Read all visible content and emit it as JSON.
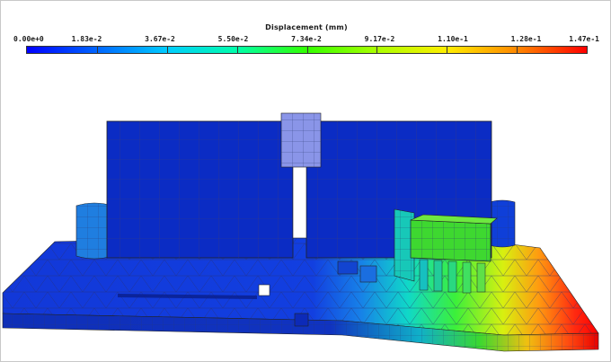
{
  "legend": {
    "title": "Displacement (mm)",
    "tick_labels": [
      "0.00e+0",
      "1.83e-2",
      "3.67e-2",
      "5.50e-2",
      "7.34e-2",
      "9.17e-2",
      "1.10e-1",
      "1.28e-1",
      "1.47e-1"
    ],
    "min_value": 0.0,
    "max_value": 0.147,
    "colormap": [
      "#0000ff",
      "#0066ff",
      "#00ccff",
      "#00ffaa",
      "#33ff00",
      "#aaff00",
      "#ffee00",
      "#ff8800",
      "#ff0000"
    ]
  },
  "model": {
    "mesh_line_color": "#4a4a6a",
    "base_plate_color": "#0a2fd6",
    "blocks_color": "#0b2ec6",
    "accent_color": "#8a95e8"
  }
}
